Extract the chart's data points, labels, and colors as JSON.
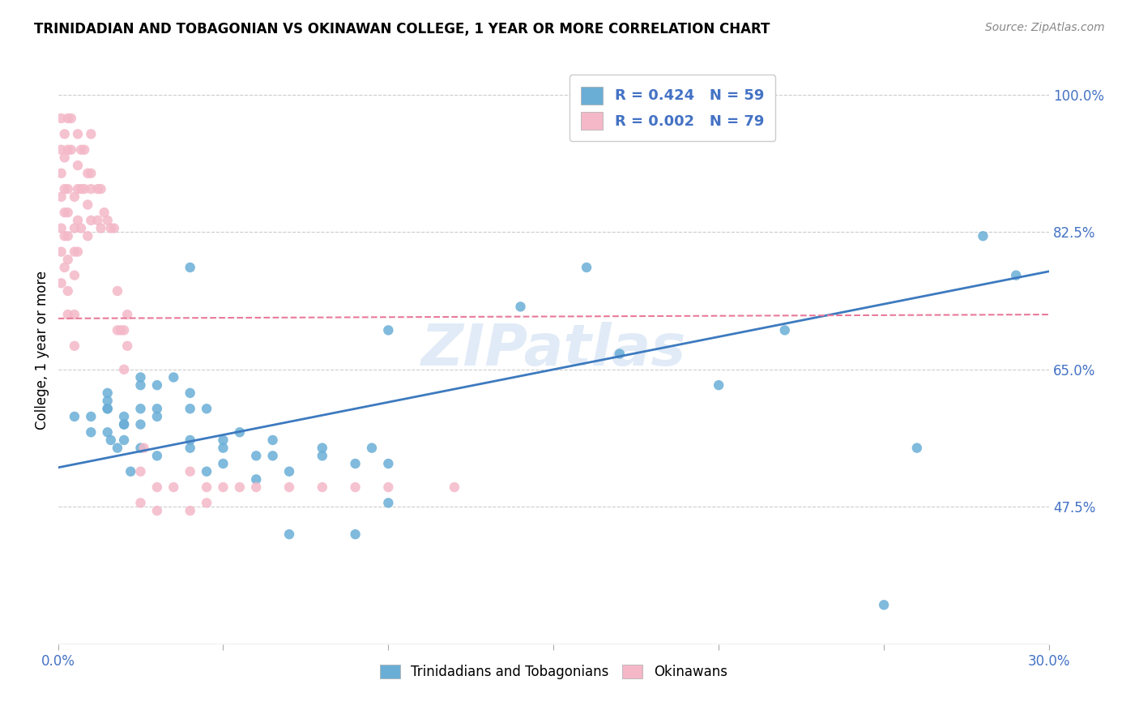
{
  "title": "TRINIDADIAN AND TOBAGONIAN VS OKINAWAN COLLEGE, 1 YEAR OR MORE CORRELATION CHART",
  "source": "Source: ZipAtlas.com",
  "xlabel": "",
  "ylabel": "College, 1 year or more",
  "xlim": [
    0.0,
    0.3
  ],
  "ylim": [
    0.3,
    1.05
  ],
  "xticks": [
    0.0,
    0.05,
    0.1,
    0.15,
    0.2,
    0.25,
    0.3
  ],
  "xticklabels": [
    "0.0%",
    "",
    "",
    "",
    "",
    "",
    "30.0%"
  ],
  "yticks": [
    0.475,
    0.65,
    0.825,
    1.0
  ],
  "yticklabels": [
    "47.5%",
    "65.0%",
    "82.5%",
    "100.0%"
  ],
  "watermark": "ZIPatlas",
  "legend_r1": "R = 0.424",
  "legend_n1": "N = 59",
  "legend_r2": "R = 0.002",
  "legend_n2": "N = 79",
  "blue_color": "#6aaed6",
  "pink_color": "#f4b8c8",
  "line_blue": "#3d7abf",
  "line_pink": "#e87a9a",
  "blue_scatter_x": [
    0.005,
    0.01,
    0.01,
    0.015,
    0.015,
    0.015,
    0.015,
    0.015,
    0.016,
    0.018,
    0.02,
    0.02,
    0.02,
    0.02,
    0.022,
    0.025,
    0.025,
    0.025,
    0.025,
    0.025,
    0.03,
    0.03,
    0.03,
    0.03,
    0.035,
    0.04,
    0.04,
    0.04,
    0.04,
    0.04,
    0.045,
    0.045,
    0.05,
    0.05,
    0.05,
    0.055,
    0.06,
    0.06,
    0.065,
    0.065,
    0.07,
    0.07,
    0.08,
    0.08,
    0.09,
    0.09,
    0.095,
    0.1,
    0.1,
    0.1,
    0.14,
    0.16,
    0.17,
    0.2,
    0.22,
    0.25,
    0.26,
    0.28,
    0.29
  ],
  "blue_scatter_y": [
    0.59,
    0.59,
    0.57,
    0.6,
    0.57,
    0.6,
    0.61,
    0.62,
    0.56,
    0.55,
    0.58,
    0.59,
    0.56,
    0.58,
    0.52,
    0.55,
    0.58,
    0.6,
    0.63,
    0.64,
    0.54,
    0.59,
    0.6,
    0.63,
    0.64,
    0.55,
    0.56,
    0.6,
    0.62,
    0.78,
    0.52,
    0.6,
    0.53,
    0.55,
    0.56,
    0.57,
    0.51,
    0.54,
    0.54,
    0.56,
    0.44,
    0.52,
    0.54,
    0.55,
    0.44,
    0.53,
    0.55,
    0.48,
    0.53,
    0.7,
    0.73,
    0.78,
    0.67,
    0.63,
    0.7,
    0.35,
    0.55,
    0.82,
    0.77
  ],
  "pink_scatter_x": [
    0.001,
    0.001,
    0.001,
    0.001,
    0.001,
    0.001,
    0.001,
    0.002,
    0.002,
    0.002,
    0.002,
    0.002,
    0.002,
    0.003,
    0.003,
    0.003,
    0.003,
    0.003,
    0.003,
    0.003,
    0.003,
    0.004,
    0.004,
    0.005,
    0.005,
    0.005,
    0.005,
    0.005,
    0.005,
    0.006,
    0.006,
    0.006,
    0.006,
    0.006,
    0.007,
    0.007,
    0.007,
    0.008,
    0.008,
    0.009,
    0.009,
    0.009,
    0.01,
    0.01,
    0.01,
    0.01,
    0.012,
    0.012,
    0.013,
    0.013,
    0.014,
    0.015,
    0.016,
    0.017,
    0.018,
    0.018,
    0.019,
    0.02,
    0.02,
    0.021,
    0.021,
    0.025,
    0.025,
    0.026,
    0.03,
    0.03,
    0.035,
    0.04,
    0.04,
    0.045,
    0.045,
    0.05,
    0.055,
    0.06,
    0.07,
    0.08,
    0.09,
    0.1,
    0.12
  ],
  "pink_scatter_y": [
    0.97,
    0.93,
    0.9,
    0.87,
    0.83,
    0.8,
    0.76,
    0.95,
    0.92,
    0.88,
    0.85,
    0.82,
    0.78,
    0.97,
    0.93,
    0.88,
    0.85,
    0.82,
    0.79,
    0.75,
    0.72,
    0.97,
    0.93,
    0.87,
    0.83,
    0.8,
    0.77,
    0.72,
    0.68,
    0.95,
    0.91,
    0.88,
    0.84,
    0.8,
    0.93,
    0.88,
    0.83,
    0.93,
    0.88,
    0.9,
    0.86,
    0.82,
    0.95,
    0.9,
    0.88,
    0.84,
    0.88,
    0.84,
    0.88,
    0.83,
    0.85,
    0.84,
    0.83,
    0.83,
    0.7,
    0.75,
    0.7,
    0.7,
    0.65,
    0.72,
    0.68,
    0.48,
    0.52,
    0.55,
    0.47,
    0.5,
    0.5,
    0.47,
    0.52,
    0.48,
    0.5,
    0.5,
    0.5,
    0.5,
    0.5,
    0.5,
    0.5,
    0.5,
    0.5
  ],
  "blue_line_x": [
    0.0,
    0.3
  ],
  "blue_line_y": [
    0.525,
    0.775
  ],
  "pink_line_x": [
    0.0,
    0.3
  ],
  "pink_line_y": [
    0.715,
    0.72
  ]
}
